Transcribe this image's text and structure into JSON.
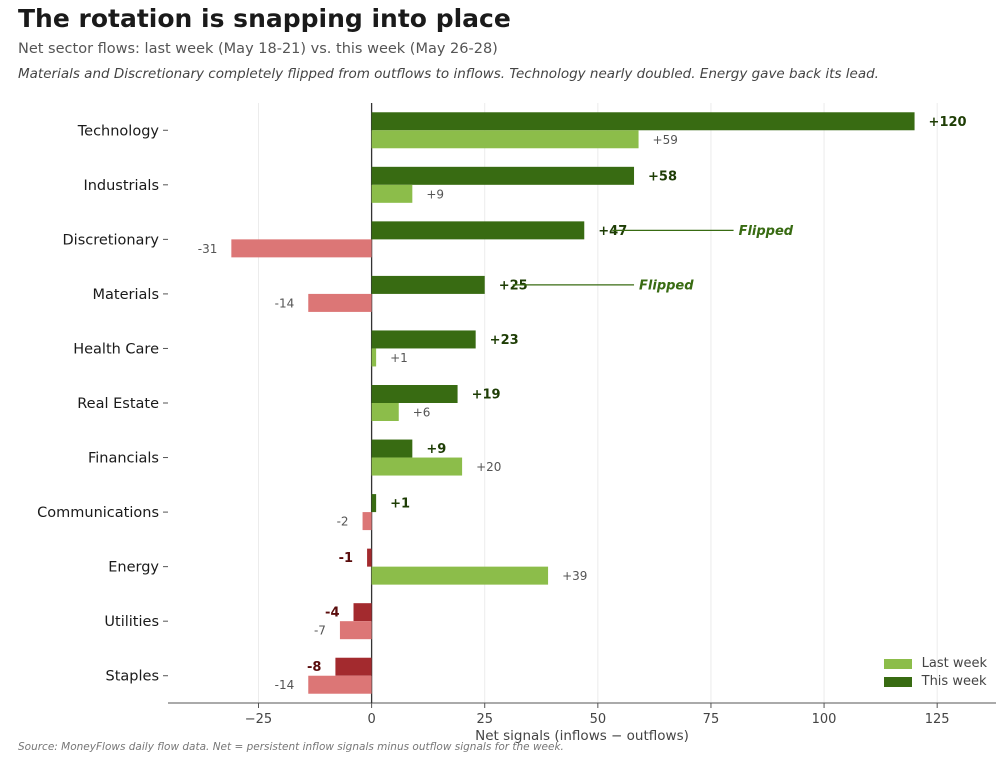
{
  "header": {
    "title": "The rotation is snapping into place",
    "subtitle": "Net sector flows: last week (May 18-21) vs. this week (May 26-28)",
    "note": "Materials and Discretionary completely flipped from outflows to inflows. Technology nearly doubled. Energy gave back its lead."
  },
  "footer": {
    "source": "Source: MoneyFlows daily flow data. Net = persistent inflow signals minus outflow signals for the week."
  },
  "colors": {
    "this_week_positive": "#386b12",
    "last_week_positive": "#8cbd4a",
    "this_week_negative": "#a32a2e",
    "last_week_negative": "#dc7676",
    "annotation": "#386b12"
  },
  "legend": {
    "items": [
      {
        "label": "Last week",
        "color": "#8cbd4a"
      },
      {
        "label": "This week",
        "color": "#386b12"
      }
    ],
    "placement": "bottom-right"
  },
  "chart_data": {
    "type": "bar",
    "orientation": "horizontal",
    "categories": [
      "Technology",
      "Industrials",
      "Discretionary",
      "Materials",
      "Health Care",
      "Real Estate",
      "Financials",
      "Communications",
      "Energy",
      "Utilities",
      "Staples"
    ],
    "series": [
      {
        "name": "This week",
        "values": [
          120,
          58,
          47,
          25,
          23,
          19,
          9,
          1,
          -1,
          -4,
          -8
        ],
        "labels": [
          "+120",
          "+58",
          "+47",
          "+25",
          "+23",
          "+19",
          "+9",
          "+1",
          "-1",
          "-4",
          "-8"
        ]
      },
      {
        "name": "Last week",
        "values": [
          59,
          9,
          -31,
          -14,
          1,
          6,
          20,
          -2,
          39,
          -7,
          -14
        ],
        "labels": [
          "+59",
          "+9",
          "-31",
          "-14",
          "+1",
          "+6",
          "+20",
          "-2",
          "+39",
          "-7",
          "-14"
        ]
      }
    ],
    "annotations": [
      {
        "category": "Discretionary",
        "text": "Flipped"
      },
      {
        "category": "Materials",
        "text": "Flipped"
      }
    ],
    "xlabel": "Net signals (inflows − outflows)",
    "xlim": [
      -45,
      138
    ],
    "xticks": [
      -25,
      0,
      25,
      50,
      75,
      100,
      125
    ],
    "xtick_labels": [
      "−25",
      "0",
      "25",
      "50",
      "75",
      "100",
      "125"
    ],
    "grid": "vertical"
  }
}
